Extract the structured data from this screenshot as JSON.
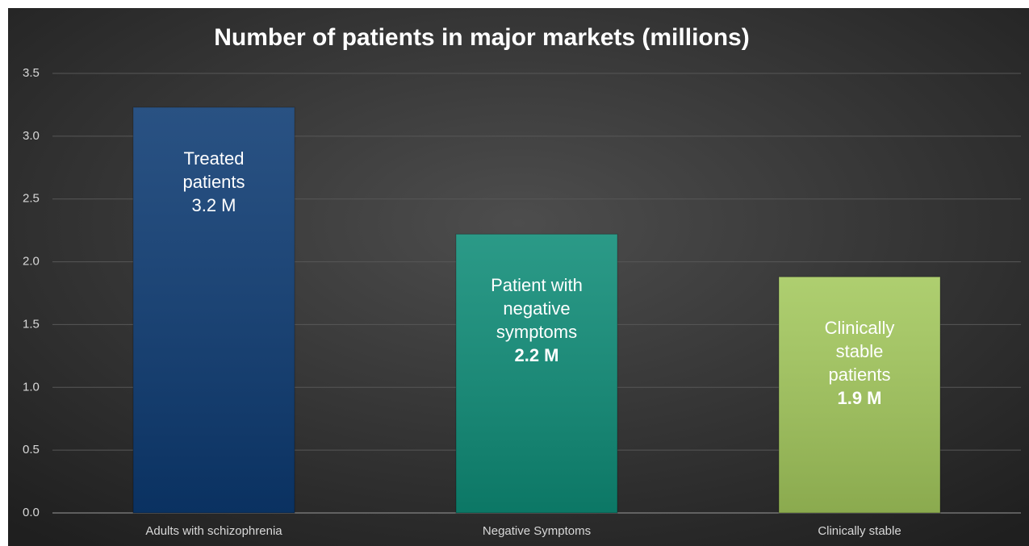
{
  "chart_data": {
    "type": "bar",
    "title": "Number of patients in major markets (millions)",
    "categories": [
      "Adults with schizophrenia",
      "Negative Symptoms",
      "Clinically stable"
    ],
    "values": [
      3.23,
      2.22,
      1.88
    ],
    "value_labels": [
      "3.2 M",
      "2.2 M",
      "1.9 M"
    ],
    "value_label_bold": [
      false,
      true,
      true
    ],
    "bar_labels": [
      [
        "Treated",
        "patients"
      ],
      [
        "Patient with",
        "negative",
        "symptoms"
      ],
      [
        "Clinically",
        "stable",
        "patients"
      ]
    ],
    "colors": [
      "#0c3a72",
      "#0e8c77",
      "#a3c85c"
    ],
    "ylim": [
      0,
      3.5
    ],
    "yticks": [
      {
        "value": 0,
        "label": "0.0"
      },
      0.5,
      {
        "value": 1,
        "label": "1.0"
      },
      1.5,
      {
        "value": 2,
        "label": "2.0"
      },
      2.5,
      {
        "value": 3,
        "label": "3.0"
      },
      3.5
    ],
    "grid": true
  }
}
